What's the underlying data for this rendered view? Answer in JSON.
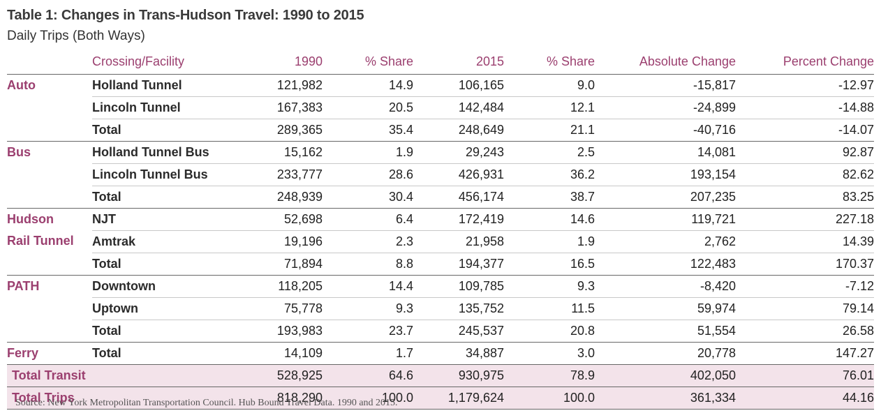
{
  "title": "Table 1: Changes in Trans-Hudson Travel: 1990 to 2015",
  "subtitle": "Daily Trips (Both Ways)",
  "columns": [
    "Crossing/Facility",
    "1990",
    "% Share",
    "2015",
    "% Share",
    "Absolute Change",
    "Percent Change"
  ],
  "groups": [
    {
      "category": "Auto",
      "rows": [
        {
          "facility": "Holland Tunnel",
          "v1990": "121,982",
          "share1990": "14.9",
          "v2015": "106,165",
          "share2015": "9.0",
          "abs": "-15,817",
          "pct": "-12.97"
        },
        {
          "facility": "Lincoln Tunnel",
          "v1990": "167,383",
          "share1990": "20.5",
          "v2015": "142,484",
          "share2015": "12.1",
          "abs": "-24,899",
          "pct": "-14.88"
        },
        {
          "facility": "Total",
          "v1990": "289,365",
          "share1990": "35.4",
          "v2015": "248,649",
          "share2015": "21.1",
          "abs": "-40,716",
          "pct": "-14.07"
        }
      ]
    },
    {
      "category": "Bus",
      "rows": [
        {
          "facility": "Holland Tunnel Bus",
          "v1990": "15,162",
          "share1990": "1.9",
          "v2015": "29,243",
          "share2015": "2.5",
          "abs": "14,081",
          "pct": "92.87"
        },
        {
          "facility": "Lincoln Tunnel Bus",
          "v1990": "233,777",
          "share1990": "28.6",
          "v2015": "426,931",
          "share2015": "36.2",
          "abs": "193,154",
          "pct": "82.62"
        },
        {
          "facility": "Total",
          "v1990": "248,939",
          "share1990": "30.4",
          "v2015": "456,174",
          "share2015": "38.7",
          "abs": "207,235",
          "pct": "83.25"
        }
      ]
    },
    {
      "category": "Hudson Rail Tunnel",
      "category_line1": "Hudson",
      "category_line2": "Rail Tunnel",
      "rows": [
        {
          "facility": "NJT",
          "v1990": "52,698",
          "share1990": "6.4",
          "v2015": "172,419",
          "share2015": "14.6",
          "abs": "119,721",
          "pct": "227.18"
        },
        {
          "facility": "Amtrak",
          "v1990": "19,196",
          "share1990": "2.3",
          "v2015": "21,958",
          "share2015": "1.9",
          "abs": "2,762",
          "pct": "14.39"
        },
        {
          "facility": "Total",
          "v1990": "71,894",
          "share1990": "8.8",
          "v2015": "194,377",
          "share2015": "16.5",
          "abs": "122,483",
          "pct": "170.37"
        }
      ]
    },
    {
      "category": "PATH",
      "rows": [
        {
          "facility": "Downtown",
          "v1990": "118,205",
          "share1990": "14.4",
          "v2015": "109,785",
          "share2015": "9.3",
          "abs": "-8,420",
          "pct": "-7.12"
        },
        {
          "facility": "Uptown",
          "v1990": "75,778",
          "share1990": "9.3",
          "v2015": "135,752",
          "share2015": "11.5",
          "abs": "59,974",
          "pct": "79.14"
        },
        {
          "facility": "Total",
          "v1990": "193,983",
          "share1990": "23.7",
          "v2015": "245,537",
          "share2015": "20.8",
          "abs": "51,554",
          "pct": "26.58"
        }
      ]
    },
    {
      "category": "Ferry",
      "rows": [
        {
          "facility": "Total",
          "v1990": "14,109",
          "share1990": "1.7",
          "v2015": "34,887",
          "share2015": "3.0",
          "abs": "20,778",
          "pct": "147.27"
        }
      ]
    }
  ],
  "totals": [
    {
      "label": "Total Transit",
      "v1990": "528,925",
      "share1990": "64.6",
      "v2015": "930,975",
      "share2015": "78.9",
      "abs": "402,050",
      "pct": "76.01"
    },
    {
      "label": "Total Trips",
      "v1990": "818,290",
      "share1990": "100.0",
      "v2015": "1,179,624",
      "share2015": "100.0",
      "abs": "361,334",
      "pct": "44.16"
    }
  ],
  "source": "Source: New York Metropolitan Transportation Council. Hub Bound Travel Data. 1990 and 2015.",
  "colors": {
    "accent": "#9b3f6f",
    "total_row_bg": "#f3e3ea",
    "rule": "#666666"
  }
}
